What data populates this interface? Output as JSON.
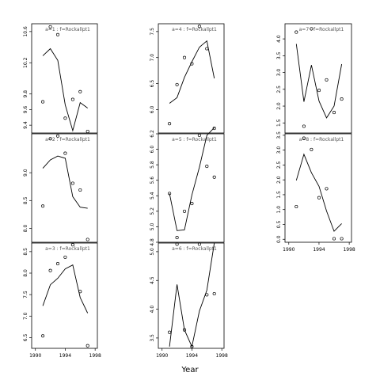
{
  "chart_data": {
    "type": "scatter",
    "xlabel": "Year",
    "grid": false,
    "x_ticks": [
      "1990",
      "1994",
      "1998"
    ],
    "panels": [
      {
        "title": "a=1  :  f=Rockallpt1",
        "ylim": [
          9.3,
          10.7
        ],
        "y_ticks": [
          "9.4",
          "9.6",
          "9.8",
          "10.2",
          "10.6"
        ],
        "points": [
          [
            1991,
            9.7
          ],
          [
            1992,
            10.66
          ],
          [
            1993,
            10.56
          ],
          [
            1994,
            9.49
          ],
          [
            1995,
            9.73
          ],
          [
            1996,
            9.83
          ],
          [
            1997,
            9.32
          ]
        ],
        "line": [
          [
            1991,
            10.29
          ],
          [
            1992,
            10.38
          ],
          [
            1993,
            10.23
          ],
          [
            1994,
            9.66
          ],
          [
            1995,
            9.33
          ],
          [
            1996,
            9.69
          ],
          [
            1997,
            9.62
          ]
        ]
      },
      {
        "title": "a=2  :  f=Rockallpt1",
        "ylim": [
          7.75,
          9.7
        ],
        "y_ticks": [
          "8.0",
          "8.5",
          "9.0"
        ],
        "points": [
          [
            1991,
            8.4
          ],
          [
            1992,
            9.61
          ],
          [
            1993,
            9.66
          ],
          [
            1994,
            9.35
          ],
          [
            1995,
            8.81
          ],
          [
            1996,
            8.69
          ],
          [
            1997,
            7.8
          ]
        ],
        "line": [
          [
            1991,
            9.08
          ],
          [
            1992,
            9.23
          ],
          [
            1993,
            9.3
          ],
          [
            1994,
            9.26
          ],
          [
            1995,
            8.57
          ],
          [
            1996,
            8.38
          ],
          [
            1997,
            8.36
          ]
        ]
      },
      {
        "title": "a=3  :  f=Rockallpt1",
        "ylim": [
          6.25,
          8.7
        ],
        "y_ticks": [
          "6.5",
          "7.0",
          "7.5",
          "8.0",
          "8.5"
        ],
        "points": [
          [
            1991,
            6.54
          ],
          [
            1992,
            8.06
          ],
          [
            1993,
            8.22
          ],
          [
            1994,
            8.37
          ],
          [
            1995,
            8.66
          ],
          [
            1996,
            7.57
          ],
          [
            1997,
            6.31
          ]
        ],
        "line": [
          [
            1991,
            7.24
          ],
          [
            1992,
            7.73
          ],
          [
            1993,
            7.88
          ],
          [
            1994,
            8.1
          ],
          [
            1995,
            8.19
          ],
          [
            1996,
            7.43
          ],
          [
            1997,
            7.07
          ]
        ]
      },
      {
        "title": "a=4  :  f=Rockallpt1",
        "ylim": [
          5.55,
          7.65
        ],
        "y_ticks": [
          "6.0",
          "6.5",
          "7.0",
          "7.5"
        ],
        "points": [
          [
            1991,
            5.73
          ],
          [
            1992,
            6.48
          ],
          [
            1993,
            7.0
          ],
          [
            1994,
            6.88
          ],
          [
            1995,
            7.6
          ],
          [
            1996,
            7.17
          ],
          [
            1997,
            5.64
          ]
        ],
        "line": [
          [
            1991,
            6.12
          ],
          [
            1992,
            6.23
          ],
          [
            1993,
            6.62
          ],
          [
            1994,
            6.92
          ],
          [
            1995,
            7.2
          ],
          [
            1996,
            7.32
          ],
          [
            1997,
            6.6
          ]
        ]
      },
      {
        "title": "a=5  :  f=Rockallpt1",
        "ylim": [
          4.8,
          6.2
        ],
        "y_ticks": [
          "4.8",
          "5.0",
          "5.2",
          "5.4",
          "5.6",
          "5.8",
          "6.0",
          "6.2"
        ],
        "points": [
          [
            1991,
            5.43
          ],
          [
            1992,
            4.86
          ],
          [
            1993,
            5.2
          ],
          [
            1994,
            5.3
          ],
          [
            1995,
            6.18
          ],
          [
            1996,
            5.78
          ],
          [
            1997,
            5.64
          ]
        ],
        "line": [
          [
            1991,
            5.43
          ],
          [
            1992,
            4.95
          ],
          [
            1993,
            4.96
          ],
          [
            1994,
            5.41
          ],
          [
            1995,
            5.77
          ],
          [
            1996,
            6.18
          ],
          [
            1997,
            6.28
          ]
        ]
      },
      {
        "title": "a=6  :  f=Rockallpt1",
        "ylim": [
          3.32,
          5.15
        ],
        "y_ticks": [
          "3.5",
          "4.0",
          "4.5",
          "5.0"
        ],
        "points": [
          [
            1991,
            3.6
          ],
          [
            1992,
            5.13
          ],
          [
            1993,
            3.64
          ],
          [
            1994,
            3.35
          ],
          [
            1995,
            5.13
          ],
          [
            1996,
            4.25
          ],
          [
            1997,
            4.27
          ]
        ],
        "line": [
          [
            1991,
            3.35
          ],
          [
            1992,
            4.43
          ],
          [
            1993,
            3.64
          ],
          [
            1994,
            3.35
          ],
          [
            1995,
            3.97
          ],
          [
            1996,
            4.33
          ],
          [
            1997,
            5.15
          ]
        ]
      },
      {
        "title": "a=7  :  f=Rockallpt1",
        "ylim": [
          1.2,
          4.45
        ],
        "y_ticks": [
          "1.5",
          "2.0",
          "2.5",
          "3.0",
          "3.5",
          "4.0"
        ],
        "points": [
          [
            1991,
            4.2
          ],
          [
            1992,
            1.4
          ],
          [
            1993,
            4.3
          ],
          [
            1994,
            2.47
          ],
          [
            1995,
            2.78
          ],
          [
            1996,
            1.81
          ],
          [
            1997,
            2.21
          ]
        ],
        "line": [
          [
            1991,
            3.85
          ],
          [
            1992,
            2.13
          ],
          [
            1993,
            3.22
          ],
          [
            1994,
            2.15
          ],
          [
            1995,
            1.65
          ],
          [
            1996,
            2.0
          ],
          [
            1997,
            3.25
          ]
        ]
      },
      {
        "title": "a=8  :  f=Rockallpt1",
        "ylim": [
          -0.1,
          3.55
        ],
        "y_ticks": [
          "0.0",
          "0.5",
          "1.0",
          "1.5",
          "2.0",
          "2.5",
          "3.0",
          "3.5"
        ],
        "points": [
          [
            1991,
            1.1
          ],
          [
            1992,
            3.4
          ],
          [
            1993,
            3.02
          ],
          [
            1994,
            1.4
          ],
          [
            1995,
            1.7
          ],
          [
            1996,
            0.02
          ],
          [
            1997,
            0.02
          ]
        ],
        "line": [
          [
            1991,
            1.98
          ],
          [
            1992,
            2.86
          ],
          [
            1993,
            2.24
          ],
          [
            1994,
            1.78
          ],
          [
            1995,
            0.95
          ],
          [
            1996,
            0.27
          ],
          [
            1997,
            0.53
          ]
        ]
      }
    ]
  }
}
